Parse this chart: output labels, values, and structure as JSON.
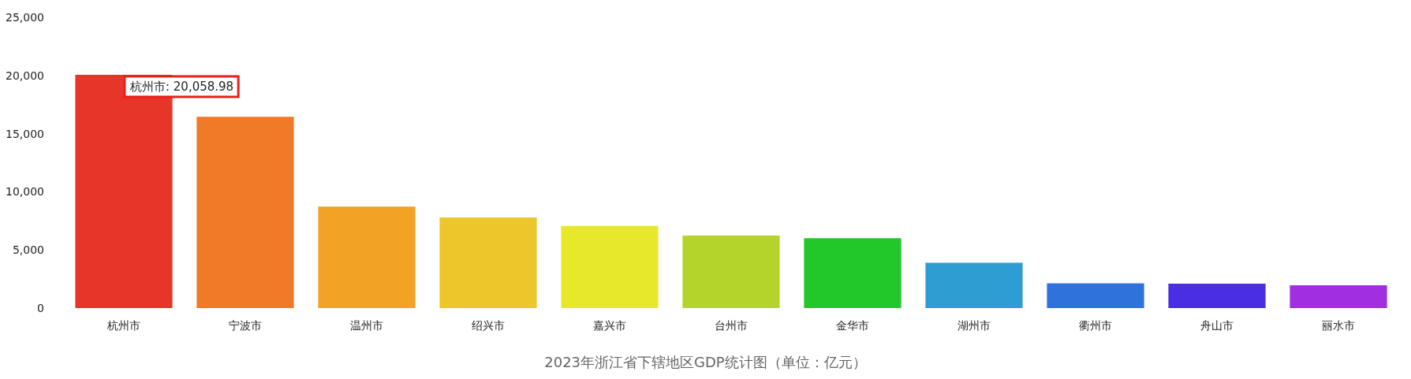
{
  "chart_data": {
    "type": "bar",
    "title": "2023年浙江省下辖地区GDP统计图（单位：亿元）",
    "categories": [
      "杭州市",
      "宁波市",
      "温州市",
      "绍兴市",
      "嘉兴市",
      "台州市",
      "金华市",
      "湖州市",
      "衢州市",
      "舟山市",
      "丽水市"
    ],
    "values": [
      20058.98,
      16450,
      8730,
      7790,
      7060,
      6240,
      6010,
      3900,
      2130,
      2100,
      1960
    ],
    "colors": [
      "#e8352a",
      "#f07a28",
      "#f2a324",
      "#ecc62a",
      "#e8e82a",
      "#b4d42c",
      "#22c82a",
      "#2e9ed2",
      "#2f72dc",
      "#4a2ee2",
      "#a22ee2"
    ],
    "ylim": [
      0,
      25000
    ],
    "yticks": [
      0,
      {
        "value": 5000,
        "label": "5,000"
      },
      {
        "value": 10000,
        "label": "10,000"
      },
      {
        "value": 15000,
        "label": "15,000"
      },
      {
        "value": 20000,
        "label": "20,000"
      },
      {
        "value": 25000,
        "label": "25,000"
      }
    ],
    "annotations": [
      {
        "text": "杭州市: 20,058.98",
        "x": "杭州市",
        "y": 20058.98
      }
    ]
  }
}
